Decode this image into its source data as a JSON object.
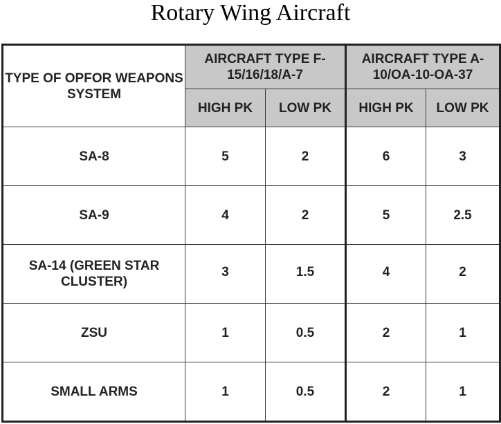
{
  "title": "Rotary Wing Aircraft",
  "header": {
    "row_label": "TYPE OF OPFOR WEAPONS SYSTEM",
    "group1": "AIRCRAFT TYPE F-15/16/18/A-7",
    "group2": "AIRCRAFT TYPE A-10/OA-10-OA-37",
    "sub": [
      "HIGH PK",
      "LOW PK",
      "HIGH PK",
      "LOW PK"
    ]
  },
  "rows": [
    {
      "label": "SA-8",
      "values": [
        "5",
        "2",
        "6",
        "3"
      ]
    },
    {
      "label": "SA-9",
      "values": [
        "4",
        "2",
        "5",
        "2.5"
      ]
    },
    {
      "label": "SA-14 (GREEN STAR CLUSTER)",
      "values": [
        "3",
        "1.5",
        "4",
        "2"
      ]
    },
    {
      "label": "ZSU",
      "values": [
        "1",
        "0.5",
        "2",
        "1"
      ]
    },
    {
      "label": "SMALL ARMS",
      "values": [
        "1",
        "0.5",
        "2",
        "1"
      ]
    }
  ]
}
